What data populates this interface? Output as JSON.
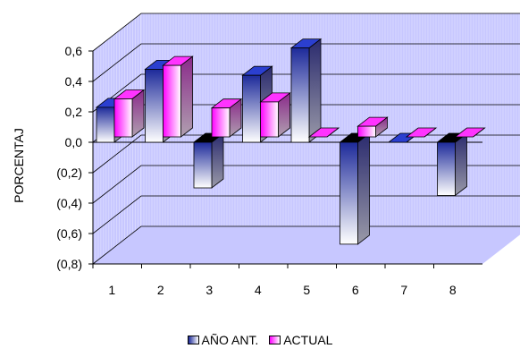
{
  "chart_data": {
    "type": "bar",
    "title": "",
    "xlabel": "",
    "ylabel": "PORCENTAJ",
    "categories": [
      "1",
      "2",
      "3",
      "4",
      "5",
      "6",
      "7",
      "8"
    ],
    "series": [
      {
        "name": "AÑO ANT.",
        "values": [
          0.23,
          0.48,
          -0.3,
          0.44,
          0.62,
          -0.67,
          0.0,
          -0.35
        ]
      },
      {
        "name": "ACTUAL",
        "values": [
          0.25,
          0.47,
          0.19,
          0.23,
          0.0,
          0.07,
          0.0,
          0.0
        ]
      }
    ],
    "ylim": [
      -0.8,
      0.6
    ],
    "yticks": [
      "(0,8)",
      "(0,6)",
      "(0,4)",
      "(0,2)",
      "0,0",
      "0,2",
      "0,4",
      "0,6"
    ],
    "grid": true,
    "legend_position": "bottom",
    "colors": {
      "series_1_dark": "#1d2a9a",
      "series_1_light": "#ffffff",
      "series_2_dark": "#ff00ff",
      "series_2_light": "#ffffff",
      "wall": "#c7c7ff",
      "wall_lines": "#ffffff"
    }
  }
}
